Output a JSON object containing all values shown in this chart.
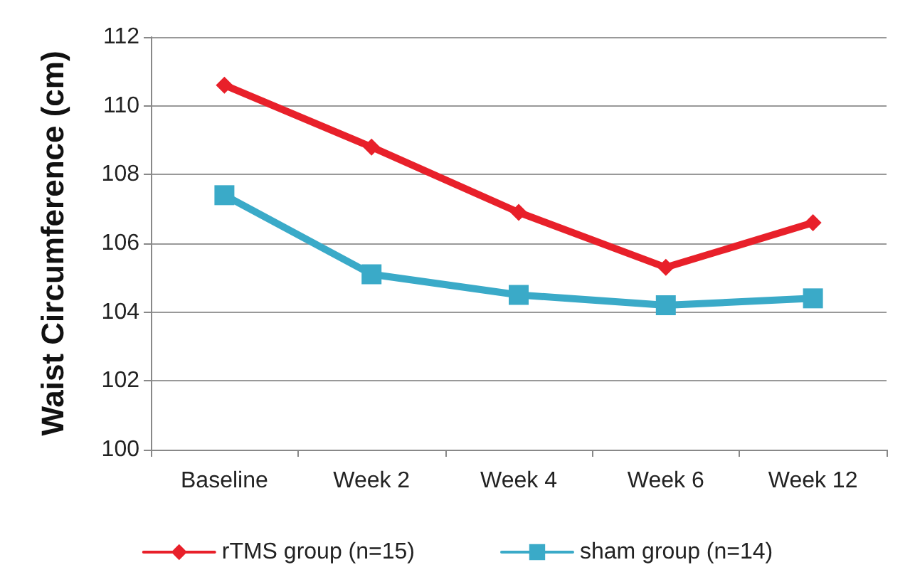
{
  "chart_data": {
    "type": "line",
    "ylabel": "Waist Circumference (cm)",
    "categories": [
      "Baseline",
      "Week 2",
      "Week 4",
      "Week 6",
      "Week 12"
    ],
    "series": [
      {
        "name": "rTMS group (n=15)",
        "color": "#e8202a",
        "marker": "diamond",
        "values": [
          110.6,
          108.8,
          106.9,
          105.3,
          106.6
        ]
      },
      {
        "name": "sham group (n=14)",
        "color": "#3aaac8",
        "marker": "square",
        "values": [
          107.4,
          105.1,
          104.5,
          104.2,
          104.4
        ]
      }
    ],
    "ylim": [
      100,
      112
    ],
    "yticks": [
      100,
      102,
      104,
      106,
      108,
      110,
      112
    ],
    "grid": "y",
    "legend": "bottom"
  }
}
